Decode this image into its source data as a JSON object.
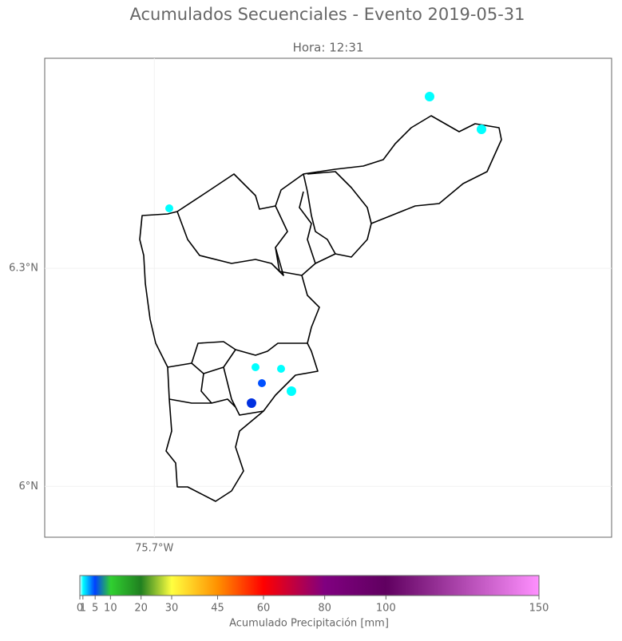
{
  "header": {
    "title": "Acumulados Secuenciales - Evento 2019-05-31",
    "subtitle": "Hora: 12:31"
  },
  "map": {
    "latlim": [
      5.93,
      6.589
    ],
    "lonlim": [
      -75.851,
      -75.07
    ],
    "lat_ticks": [
      {
        "value": 6.3,
        "label": "6.3°N"
      },
      {
        "value": 6,
        "label": "6°N"
      }
    ],
    "lon_ticks": [
      {
        "value": -75.7,
        "label": "75.7°W"
      }
    ]
  },
  "colorbar": {
    "label": "Acumulado Precipitación [mm]",
    "range": [
      0,
      150
    ],
    "ticks": [
      0,
      1,
      5,
      10,
      20,
      30,
      45,
      60,
      80,
      100,
      150
    ]
  }
}
